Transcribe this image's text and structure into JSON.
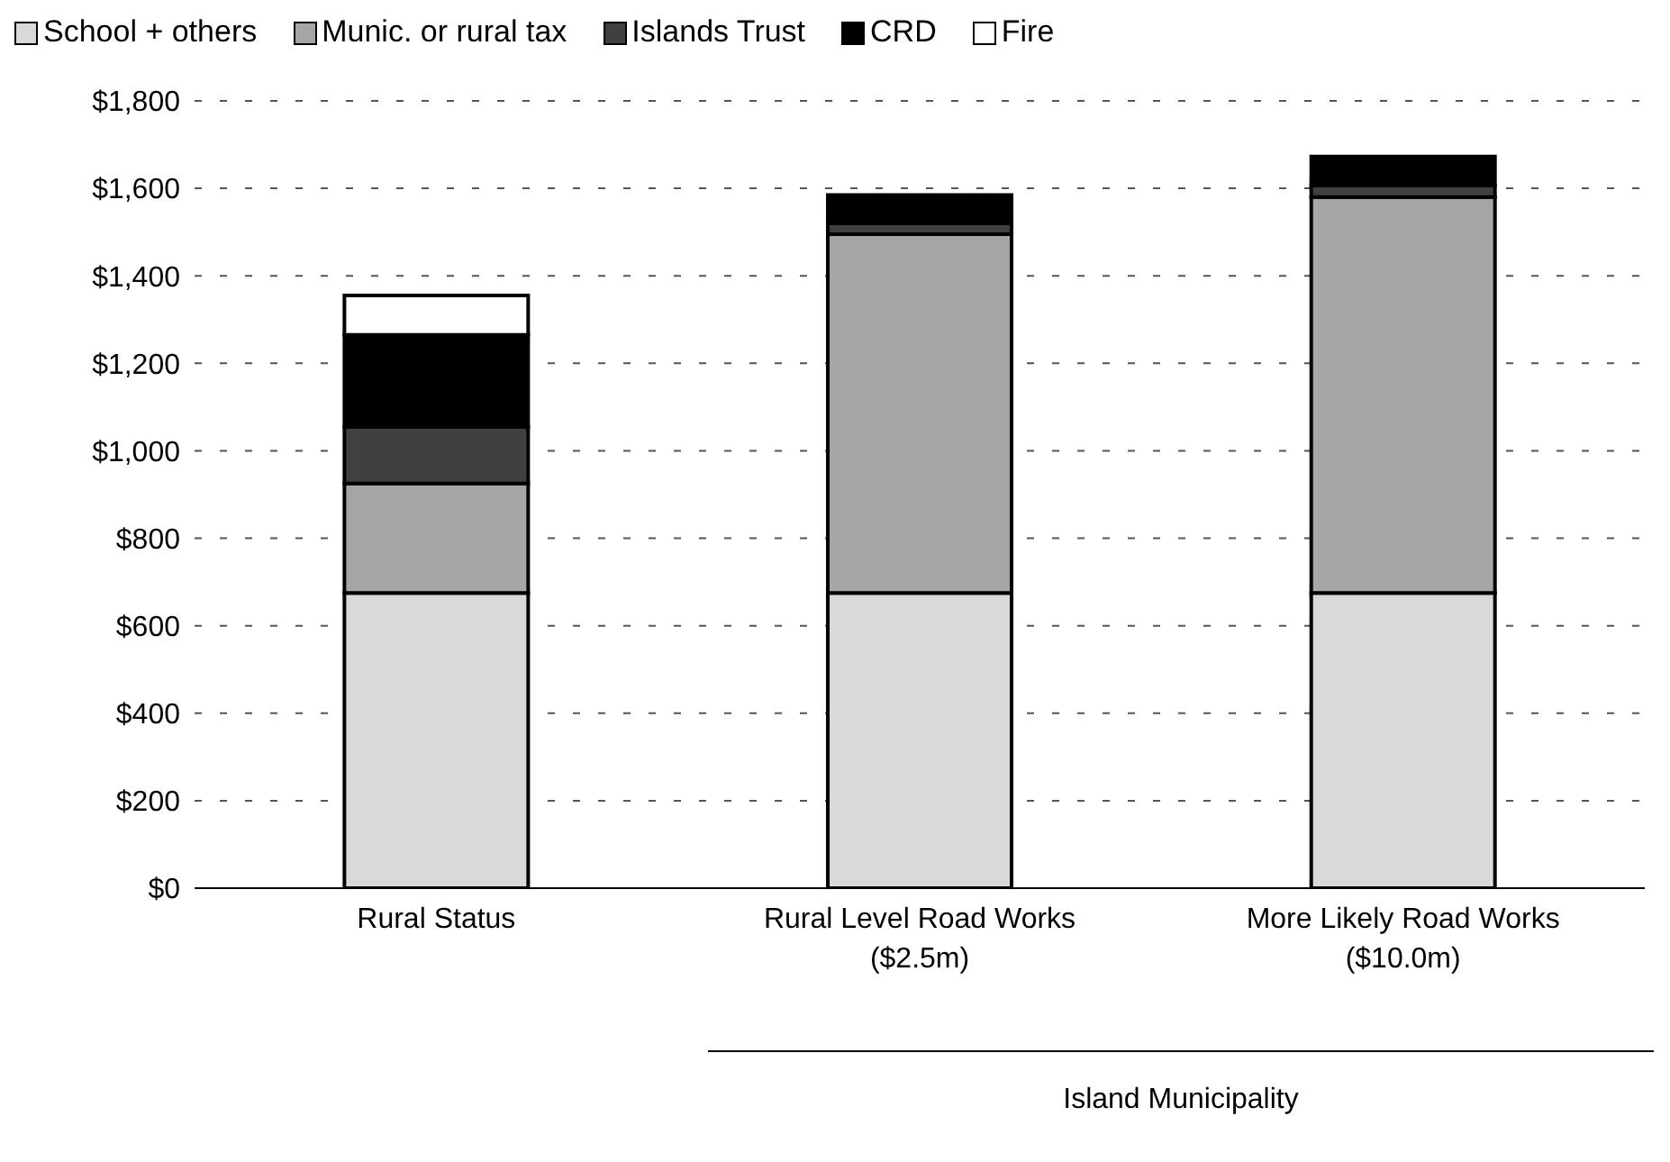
{
  "chart_data": {
    "type": "bar",
    "stacked": true,
    "categories": [
      "Rural Status",
      "Rural Level Road Works\n($2.5m)",
      "More Likely Road Works\n($10.0m)"
    ],
    "series": [
      {
        "name": "School + others",
        "color": "#d9d9d9",
        "values": [
          675,
          675,
          675
        ]
      },
      {
        "name": "Munic. or rural tax",
        "color": "#a6a6a6",
        "values": [
          250,
          820,
          905
        ]
      },
      {
        "name": "Islands Trust",
        "color": "#404040",
        "values": [
          130,
          25,
          27
        ]
      },
      {
        "name": "CRD",
        "color": "#000000",
        "values": [
          210,
          65,
          66
        ]
      },
      {
        "name": "Fire",
        "color": "#ffffff",
        "values": [
          90,
          0,
          0
        ]
      }
    ],
    "ylim": [
      0,
      1800
    ],
    "yticks": [
      {
        "value": 0,
        "label": "$0"
      },
      {
        "value": 200,
        "label": "$200"
      },
      {
        "value": 400,
        "label": "$400"
      },
      {
        "value": 600,
        "label": "$600"
      },
      {
        "value": 800,
        "label": "$800"
      },
      {
        "value": 1000,
        "label": "$1,000"
      },
      {
        "value": 1200,
        "label": "$1,200"
      },
      {
        "value": 1400,
        "label": "$1,400"
      },
      {
        "value": 1600,
        "label": "$1,600"
      },
      {
        "value": 1800,
        "label": "$1,800"
      }
    ],
    "grid": "y",
    "legend": "top left",
    "annotations": [
      "Island Municipality"
    ]
  }
}
